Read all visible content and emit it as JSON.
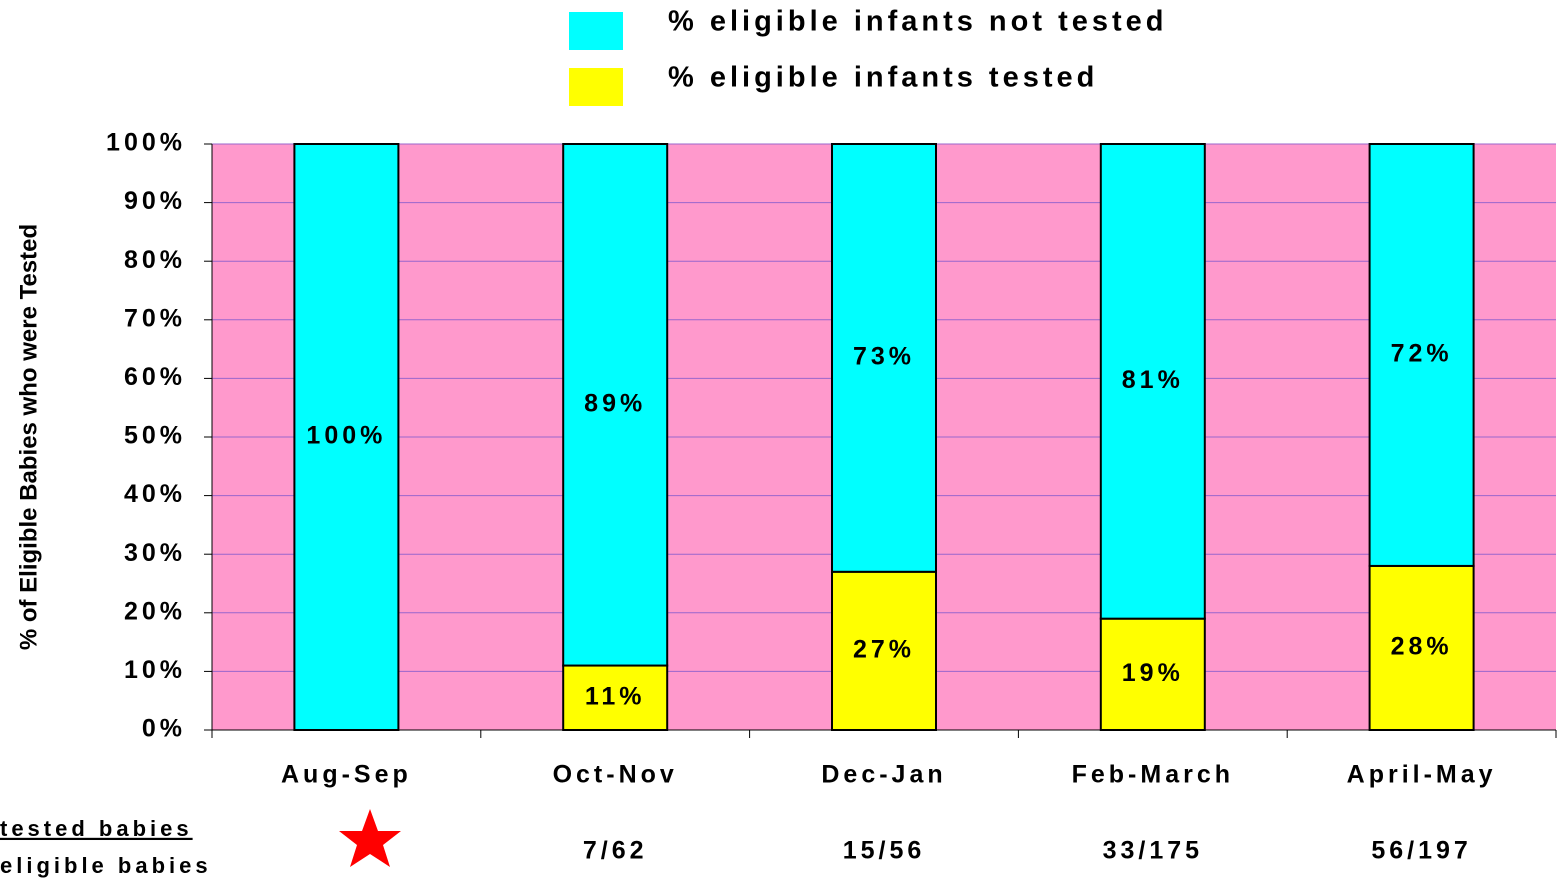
{
  "chart_data": {
    "type": "stacked_bar",
    "y_axis_label": "% of Eligible Babies who were Tested",
    "categories": [
      "Aug-Sep",
      "Oct-Nov",
      "Dec-Jan",
      "Feb-March",
      "April-May"
    ],
    "series": [
      {
        "name": "% eligible infants tested",
        "color": "#ffff00",
        "values": [
          0,
          11,
          27,
          19,
          28
        ],
        "value_labels": [
          null,
          "11%",
          "27%",
          "19%",
          "28%"
        ]
      },
      {
        "name": "% eligible infants not tested",
        "color": "#00ffff",
        "values": [
          100,
          89,
          73,
          81,
          72
        ],
        "value_labels": [
          "100%",
          "89%",
          "73%",
          "81%",
          "72%"
        ]
      }
    ],
    "ylim": [
      0,
      100
    ],
    "yticks": [
      {
        "value": 0,
        "label": "0%"
      },
      {
        "value": 10,
        "label": "10%"
      },
      {
        "value": 20,
        "label": "20%"
      },
      {
        "value": 30,
        "label": "30%"
      },
      {
        "value": 40,
        "label": "40%"
      },
      {
        "value": 50,
        "label": "50%"
      },
      {
        "value": 60,
        "label": "60%"
      },
      {
        "value": 70,
        "label": "70%"
      },
      {
        "value": 80,
        "label": "80%"
      },
      {
        "value": 90,
        "label": "90%"
      },
      {
        "value": 100,
        "label": "100%"
      }
    ],
    "grid": true,
    "plot_background": "#ff99cc",
    "ratio_label": {
      "numerator": "tested babies",
      "denominator": "eligible babies"
    },
    "ratios": [
      null,
      "7/62",
      "15/56",
      "33/175",
      "56/197"
    ]
  }
}
